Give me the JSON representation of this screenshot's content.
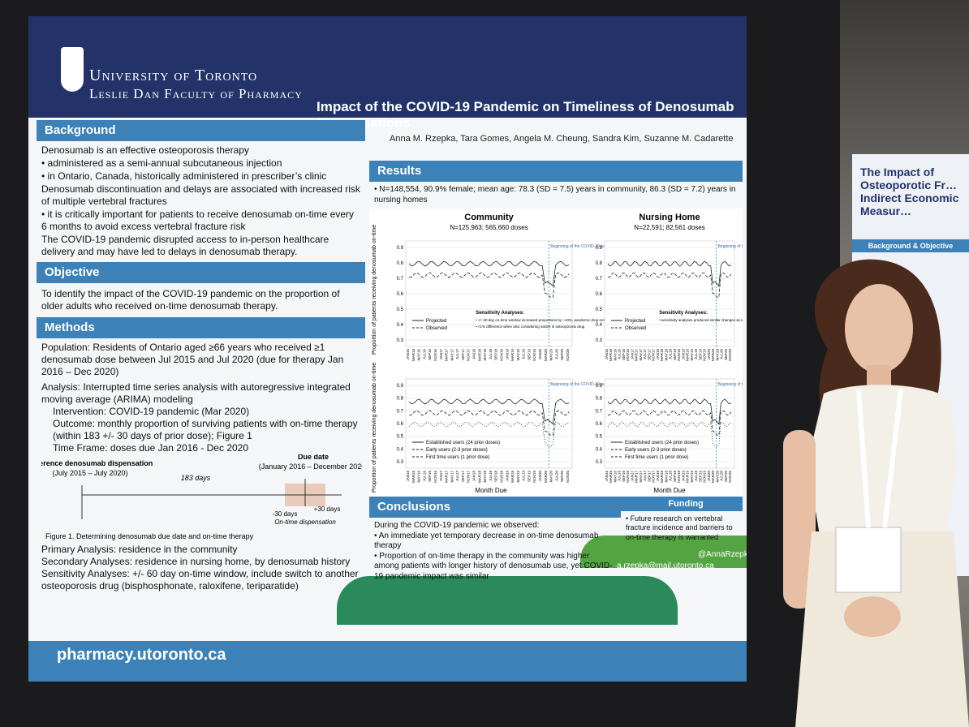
{
  "poster": {
    "logo": {
      "line1": "University of Toronto",
      "line2": "Leslie Dan Faculty of Pharmacy"
    },
    "title": "Impact of the COVID-19 Pandemic on Timeliness of Denosumab Dispensations",
    "authors": "Anna M. Rzepka, Tara Gomes, Angela M. Cheung, Sandra Kim, Suzanne M. Cadarette",
    "background": {
      "heading": "Background",
      "items": [
        "Denosumab is an effective osteoporosis therapy",
        "• administered as a semi-annual subcutaneous injection",
        "• in Ontario, Canada, historically administered in prescriber’s clinic",
        "Denosumab discontinuation and delays are associated with increased risk of multiple vertebral fractures",
        "• it is critically important for patients to receive denosumab on-time every 6 months to avoid excess vertebral fracture risk",
        "The COVID-19 pandemic disrupted access to in-person healthcare delivery and may have led to delays in denosumab therapy."
      ]
    },
    "objective": {
      "heading": "Objective",
      "text": "To identify the impact of the COVID-19 pandemic on the proportion of older adults who received on-time denosumab therapy."
    },
    "methods": {
      "heading": "Methods",
      "population": "Population: Residents of Ontario aged ≥66 years who received ≥1 denosumab dose between Jul 2015 and Jul 2020 (due for therapy Jan 2016 – Dec 2020)",
      "analysis": "Analysis: Interrupted time series analysis with autoregressive integrated moving average (ARIMA) modeling",
      "intervention": "Intervention: COVID-19 pandemic (Mar 2020)",
      "outcome": "Outcome: monthly proportion of surviving patients with on-time therapy (within 183 +/- 30 days of prior dose); Figure 1",
      "time_frame": "Time Frame: doses due Jan 2016 - Dec 2020",
      "figure": {
        "reference": "Reference denosumab dispensation",
        "reference_dates": "(July 2015 – July 2020)",
        "interval": "183 days",
        "due": "Due date",
        "due_dates": "(January 2016 – December 2020)",
        "minus": "-30 days",
        "plus": "+30 days",
        "window": "On-time dispensation",
        "caption": "Figure 1. Determining denosumab due date and on-time therapy"
      },
      "primary": "Primary Analysis: residence in the community",
      "secondary": "Secondary Analyses: residence in nursing home, by denosumab history",
      "sensitivity": "Sensitivity Analyses: +/- 60 day on-time window, include switch to another osteoporosis drug (bisphosphonate, raloxifene, teriparatide)"
    },
    "results": {
      "heading": "Results",
      "summary": "• N=148,554, 90.9% female; mean age: 78.3 (SD = 7.5) years in community, 86.3 (SD = 7.2) years in nursing homes",
      "y_axis_label": "Proportion of patients receiving denosumab on-time",
      "y_ticks": [
        "0.9",
        "0.8",
        "0.7",
        "0.6",
        "0.5",
        "0.4",
        "0.3"
      ],
      "x_axis_label": "Month Due",
      "months": [
        "JAN16",
        "MAR16",
        "MAY16",
        "JUL16",
        "SEP16",
        "NOV16",
        "JAN17",
        "MAR17",
        "MAY17",
        "JUL17",
        "SEP17",
        "NOV17",
        "JAN18",
        "MAR18",
        "MAY18",
        "JUL18",
        "SEP18",
        "NOV18",
        "JAN19",
        "MAR19",
        "MAY19",
        "JUL19",
        "SEP19",
        "NOV19",
        "JAN20",
        "MAR20",
        "MAY20",
        "JUL20",
        "SEP20",
        "NOV20"
      ],
      "charts": [
        {
          "title": "Community",
          "subtitle": "N=125,963; 565,660 doses",
          "legend": [
            "Projected",
            "Observed"
          ],
          "note_title": "Sensitivity Analyses:",
          "notes": [
            "• +/- 60 day on-time window increased proportions by ~10%, pandemic drop remained significant",
            "• <1% difference when also considering switch in osteoporosis drug"
          ],
          "annotation": "Beginning of the COVID-19 pandemic"
        },
        {
          "title": "Nursing Home",
          "subtitle": "N=22,591; 82,561 doses",
          "legend": [
            "Projected",
            "Observed"
          ],
          "note_title": "Sensitivity Analyses:",
          "notes": [
            "• sensitivity analyses produced similar changes as in the community"
          ],
          "annotation": "Beginning of the COVID-19 pandemic"
        },
        {
          "legend": [
            "Established users (24 prior doses)",
            "Early users (2-3 prior doses)",
            "First time users (1 prior dose)"
          ],
          "annotation": "Beginning of the COVID-19 pandemic"
        },
        {
          "legend": [
            "Established users (24 prior doses)",
            "Early users (2-3 prior doses)",
            "First time users (1 prior dose)"
          ],
          "annotation": "Beginning of the COVID-19 pandemic"
        }
      ]
    },
    "funding": "Funding",
    "conclusions": {
      "heading": "Conclusions",
      "intro": "During the COVID-19 pandemic we observed:",
      "items": [
        "• An immediate yet temporary decrease in on-time denosumab therapy",
        "• Proportion of on-time therapy in the community was higher among patients with longer history of denosumab use, yet COVID-19 pandemic impact was similar"
      ],
      "future": "• Future research on vertebral fracture incidence and barriers to on-time therapy is warranted"
    },
    "contact": {
      "email": "a.rzepka@mail.utoronto.ca",
      "twitter": "@AnnaRzepkaB"
    },
    "footer_url": "pharmacy.utoronto.ca"
  },
  "side_poster": {
    "title": "The Impact of Osteoporotic Fr… Indirect Economic Measur…",
    "heading": "Background & Objective"
  }
}
